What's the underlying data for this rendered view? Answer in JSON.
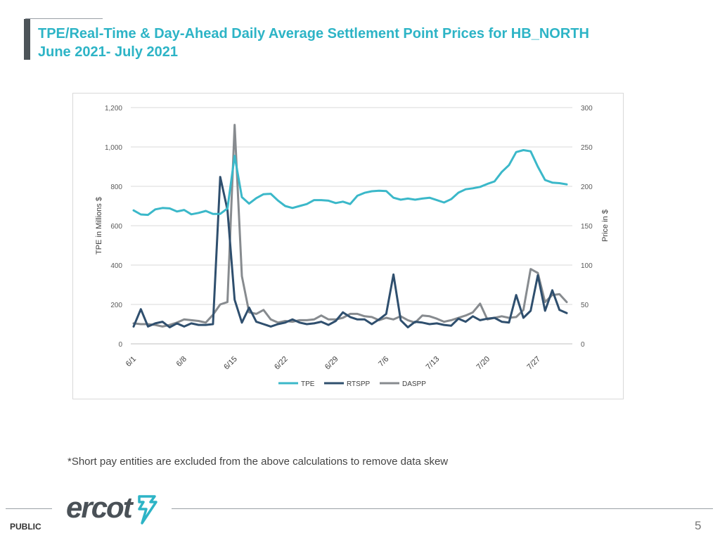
{
  "header": {
    "title_line1": "TPE/Real-Time & Day-Ahead Daily Average Settlement Point Prices for HB_NORTH",
    "title_line2": "June 2021- July 2021"
  },
  "note": "*Short pay entities are excluded from the above calculations to remove data skew",
  "footer": {
    "public_label": "PUBLIC",
    "page_number": "5",
    "logo_text": "ercot"
  },
  "colors": {
    "title": "#2db4c6",
    "tpe": "#3bb8c9",
    "rtspp": "#2f4f6e",
    "daspp": "#878b8f"
  },
  "chart_data": {
    "type": "line",
    "x": [
      "6/1",
      "6/2",
      "6/3",
      "6/4",
      "6/5",
      "6/6",
      "6/7",
      "6/8",
      "6/9",
      "6/10",
      "6/11",
      "6/12",
      "6/13",
      "6/14",
      "6/15",
      "6/16",
      "6/17",
      "6/18",
      "6/19",
      "6/20",
      "6/21",
      "6/22",
      "6/23",
      "6/24",
      "6/25",
      "6/26",
      "6/27",
      "6/28",
      "6/29",
      "6/30",
      "7/1",
      "7/2",
      "7/3",
      "7/4",
      "7/5",
      "7/6",
      "7/7",
      "7/8",
      "7/9",
      "7/10",
      "7/11",
      "7/12",
      "7/13",
      "7/14",
      "7/15",
      "7/16",
      "7/17",
      "7/18",
      "7/19",
      "7/20",
      "7/21",
      "7/22",
      "7/23",
      "7/24",
      "7/25",
      "7/26",
      "7/27",
      "7/28",
      "7/29",
      "7/30",
      "7/31"
    ],
    "x_tick_labels": [
      "6/1",
      "6/8",
      "6/15",
      "6/22",
      "6/29",
      "7/6",
      "7/13",
      "7/20",
      "7/27"
    ],
    "y_left_label": "TPE in Millions $",
    "y_left_range": [
      0,
      1200
    ],
    "y_left_ticks": [
      "0",
      "200",
      "400",
      "600",
      "800",
      "1,000",
      "1,200"
    ],
    "y_right_label": "Price in $",
    "y_right_range": [
      0,
      300
    ],
    "y_right_ticks": [
      "0",
      "50",
      "100",
      "150",
      "200",
      "250",
      "300"
    ],
    "grid": true,
    "legend_position": "bottom",
    "series": [
      {
        "name": "TPE",
        "axis": "left",
        "values": [
          678,
          657,
          655,
          683,
          690,
          688,
          672,
          680,
          658,
          665,
          675,
          660,
          660,
          688,
          955,
          745,
          712,
          740,
          760,
          762,
          728,
          700,
          690,
          700,
          710,
          730,
          730,
          727,
          715,
          722,
          710,
          752,
          767,
          775,
          778,
          776,
          742,
          732,
          738,
          732,
          738,
          742,
          730,
          718,
          735,
          768,
          785,
          790,
          797,
          812,
          825,
          873,
          908,
          974,
          984,
          978,
          900,
          832,
          819,
          816,
          810
        ],
        "color": "#3bb8c9"
      },
      {
        "name": "RTSPP",
        "axis": "right",
        "values": [
          22,
          44,
          22,
          26,
          28,
          21,
          26,
          22,
          26,
          24,
          24,
          25,
          212,
          170,
          56,
          27,
          46,
          28,
          25,
          22,
          25,
          27,
          31,
          27,
          25,
          26,
          28,
          24,
          29,
          40,
          34,
          31,
          31,
          25,
          31,
          38,
          88,
          30,
          21,
          28,
          27,
          25,
          26,
          24,
          23,
          32,
          28,
          35,
          30,
          32,
          33,
          28,
          27,
          62,
          33,
          42,
          87,
          42,
          68,
          43,
          39
        ],
        "color": "#2f4f6e"
      },
      {
        "name": "DASPP",
        "axis": "right",
        "values": [
          26,
          25,
          25,
          24,
          22,
          24,
          27,
          31,
          30,
          29,
          27,
          37,
          50,
          53,
          278,
          86,
          40,
          38,
          43,
          31,
          27,
          29,
          28,
          30,
          30,
          31,
          36,
          31,
          31,
          33,
          38,
          38,
          35,
          34,
          30,
          33,
          31,
          35,
          30,
          27,
          36,
          35,
          32,
          28,
          30,
          33,
          36,
          40,
          51,
          31,
          33,
          35,
          33,
          34,
          43,
          95,
          90,
          53,
          62,
          63,
          53
        ],
        "color": "#878b8f"
      }
    ]
  }
}
